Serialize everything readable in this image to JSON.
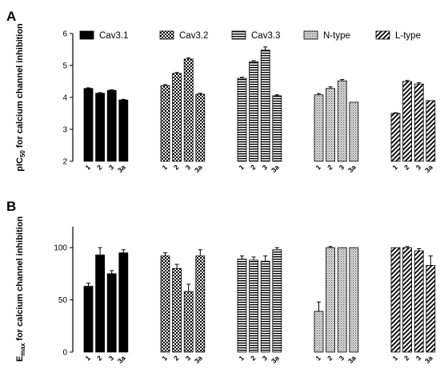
{
  "chart_data": [
    {
      "type": "bar",
      "panel": "A",
      "ylabel_main": "pIC",
      "ylabel_sub": "50",
      "ylabel_rest": " for calcium channel inhibition",
      "ylim": [
        2,
        6
      ],
      "yticks": [
        "2",
        "3",
        "4",
        "5",
        "6"
      ],
      "categories": [
        "1",
        "2",
        "3",
        "3a"
      ],
      "legend_placement": "top",
      "series": [
        {
          "name": "Cav3.1",
          "pattern": "solid",
          "values": [
            4.28,
            4.13,
            4.22,
            3.92
          ],
          "errors": [
            0.02,
            0.02,
            0.02,
            0.02
          ]
        },
        {
          "name": "Cav3.2",
          "pattern": "checker",
          "values": [
            4.37,
            4.75,
            5.2,
            4.1
          ],
          "errors": [
            0.03,
            0.03,
            0.04,
            0.03
          ]
        },
        {
          "name": "Cav3.3",
          "pattern": "hlines",
          "values": [
            4.6,
            5.12,
            5.48,
            4.05
          ],
          "errors": [
            0.03,
            0.03,
            0.1,
            0.03
          ]
        },
        {
          "name": "N-type",
          "pattern": "dotted",
          "values": [
            4.08,
            4.28,
            4.52,
            3.85
          ],
          "errors": [
            0.04,
            0.05,
            0.04,
            0.0
          ]
        },
        {
          "name": "L-type",
          "pattern": "diag",
          "values": [
            3.5,
            4.5,
            4.42,
            3.9
          ],
          "errors": [
            0.02,
            0.03,
            0.04,
            0.0
          ]
        }
      ]
    },
    {
      "type": "bar",
      "panel": "B",
      "ylabel_main": "E",
      "ylabel_sub": "max",
      "ylabel_rest": " for calcium channel inhibition",
      "ylim": [
        0,
        120
      ],
      "yticks": [
        "0",
        "50",
        "100"
      ],
      "categories": [
        "1",
        "2",
        "3",
        "3a"
      ],
      "series": [
        {
          "name": "Cav3.1",
          "pattern": "solid",
          "values": [
            63,
            93,
            75,
            95
          ],
          "errors": [
            3,
            7,
            3,
            3
          ]
        },
        {
          "name": "Cav3.2",
          "pattern": "checker",
          "values": [
            92,
            80,
            58,
            92
          ],
          "errors": [
            3,
            4,
            7,
            6
          ]
        },
        {
          "name": "Cav3.3",
          "pattern": "hlines",
          "values": [
            89,
            88,
            87,
            98
          ],
          "errors": [
            3,
            3,
            5,
            2
          ]
        },
        {
          "name": "N-type",
          "pattern": "dotted",
          "values": [
            39,
            100,
            100,
            100
          ],
          "errors": [
            9,
            1,
            0,
            0
          ]
        },
        {
          "name": "L-type",
          "pattern": "diag",
          "values": [
            100,
            100,
            97,
            83
          ],
          "errors": [
            0,
            1,
            2,
            9
          ]
        }
      ]
    }
  ]
}
